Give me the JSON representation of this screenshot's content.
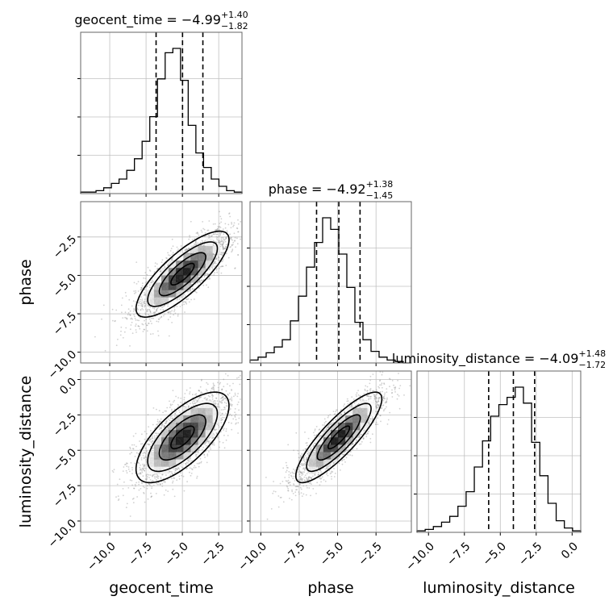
{
  "colors": {
    "ink": "#000000",
    "grid": "#c0c0c0",
    "scatter": "#9a9a9a",
    "background": "#ffffff"
  },
  "chart_data": {
    "type": "corner",
    "parameters": [
      "geocent_time",
      "phase",
      "luminosity_distance"
    ],
    "axis_labels": [
      "geocent_time",
      "phase",
      "luminosity_distance"
    ],
    "tick_values": [
      [
        -10.0,
        -7.5,
        -5.0,
        -2.5
      ],
      [
        -10.0,
        -7.5,
        -5.0,
        -2.5
      ],
      [
        -10.0,
        -7.5,
        -5.0,
        -2.5,
        0.0
      ]
    ],
    "tick_labels": [
      [
        "−10.0",
        "−7.5",
        "−5.0",
        "−2.5"
      ],
      [
        "−10.0",
        "−7.5",
        "−5.0",
        "−2.5"
      ],
      [
        "−10.0",
        "−7.5",
        "−5.0",
        "−2.5",
        "0.0"
      ]
    ],
    "ranges": [
      [
        -12.0,
        -0.9
      ],
      [
        -10.7,
        -0.2
      ],
      [
        -10.8,
        0.6
      ]
    ],
    "titles": [
      {
        "text": "geocent_time = −4.99",
        "plus": "+1.40",
        "minus": "−1.82"
      },
      {
        "text": "phase = −4.92",
        "plus": "+1.38",
        "minus": "−1.45"
      },
      {
        "text": "luminosity_distance = −4.09",
        "plus": "+1.48",
        "minus": "−1.72"
      }
    ],
    "quantiles": [
      [
        -6.81,
        -4.99,
        -3.59
      ],
      [
        -6.37,
        -4.92,
        -3.54
      ],
      [
        -5.81,
        -4.09,
        -2.61
      ]
    ],
    "histograms": [
      {
        "parameter": "geocent_time",
        "edges_range": [
          -12.0,
          -0.9
        ],
        "counts": [
          1,
          1,
          2,
          4,
          7,
          10,
          16,
          24,
          36,
          53,
          79,
          97,
          100,
          78,
          47,
          28,
          18,
          10,
          5,
          2,
          1
        ]
      },
      {
        "parameter": "phase",
        "edges_range": [
          -10.7,
          -0.2
        ],
        "counts": [
          2,
          4,
          7,
          11,
          16,
          29,
          46,
          66,
          83,
          100,
          92,
          75,
          52,
          28,
          16,
          8,
          4,
          2,
          1,
          0
        ]
      },
      {
        "parameter": "luminosity_distance",
        "edges_range": [
          -10.8,
          0.6
        ],
        "counts": [
          1,
          2,
          4,
          7,
          11,
          18,
          28,
          45,
          63,
          80,
          88,
          93,
          100,
          89,
          62,
          39,
          20,
          8,
          3,
          1
        ]
      }
    ],
    "pairs": [
      {
        "x": "geocent_time",
        "y": "phase",
        "center": [
          -4.99,
          -4.92
        ],
        "sigma": [
          1.6,
          1.4
        ],
        "correlation": 0.8,
        "contour_levels": [
          0.5,
          1.0,
          1.5,
          2.0
        ]
      },
      {
        "x": "geocent_time",
        "y": "luminosity_distance",
        "center": [
          -4.99,
          -4.09
        ],
        "sigma": [
          1.6,
          1.6
        ],
        "correlation": 0.7,
        "contour_levels": [
          0.5,
          1.0,
          1.5,
          2.0
        ]
      },
      {
        "x": "phase",
        "y": "luminosity_distance",
        "center": [
          -4.92,
          -4.09
        ],
        "sigma": [
          1.4,
          1.6
        ],
        "correlation": 0.85,
        "contour_levels": [
          0.5,
          1.0,
          1.5,
          2.0
        ]
      }
    ],
    "grid": true,
    "legend": "none"
  }
}
